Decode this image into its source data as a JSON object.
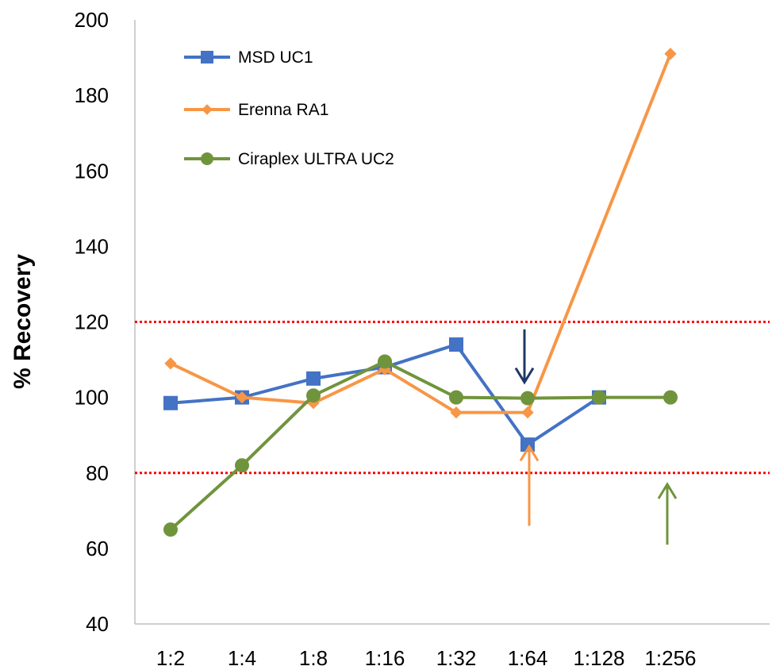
{
  "chart_data": {
    "type": "line",
    "title": "",
    "xlabel": "",
    "ylabel": "% Recovery",
    "categories": [
      "1:2",
      "1:4",
      "1:8",
      "1:16",
      "1:32",
      "1:64",
      "1:128",
      "1:256"
    ],
    "ylim": [
      40,
      200
    ],
    "yticks": [
      40,
      60,
      80,
      100,
      120,
      140,
      160,
      180,
      200
    ],
    "grid": false,
    "legend_position": "top-left",
    "reference_lines": [
      {
        "y": 120,
        "color": "#ff0000",
        "style": "dotted"
      },
      {
        "y": 80,
        "color": "#ff0000",
        "style": "dotted"
      }
    ],
    "series": [
      {
        "name": "MSD UC1",
        "marker": "square",
        "color": "#4472c4",
        "values": [
          98.5,
          100,
          105,
          108,
          114,
          87.5,
          100,
          null
        ]
      },
      {
        "name": "Erenna RA1",
        "marker": "diamond",
        "color": "#f79646",
        "values": [
          109,
          100,
          98.5,
          107.5,
          96,
          96,
          null,
          191
        ]
      },
      {
        "name": "Ciraplex ULTRA UC2",
        "marker": "circle",
        "color": "#70943c",
        "values": [
          65,
          82,
          100.5,
          109.5,
          100,
          99.8,
          100,
          100
        ]
      }
    ],
    "annotations": [
      {
        "type": "arrow-down",
        "category": "1:64",
        "from": 118,
        "to": 104,
        "color": "#1f3864"
      },
      {
        "type": "arrow-up",
        "category": "1:64",
        "from": 66,
        "to": 87,
        "color": "#f79646"
      },
      {
        "type": "arrow-up",
        "category": "1:256",
        "from": 61,
        "to": 77,
        "color": "#70943c"
      }
    ]
  }
}
